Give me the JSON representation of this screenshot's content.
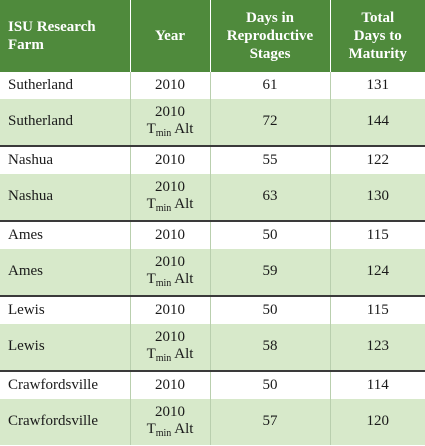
{
  "header": {
    "col1": [
      "ISU Research",
      "Farm"
    ],
    "col2": "Year",
    "col3": [
      "Days in",
      "Reproductive",
      "Stages"
    ],
    "col4": [
      "Total",
      "Days to",
      "Maturity"
    ]
  },
  "rows": [
    {
      "site": "Sutherland",
      "year": "2010",
      "alt": false,
      "repro": "61",
      "total": "131"
    },
    {
      "site": "Sutherland",
      "year": "2010",
      "alt": true,
      "alt_main": "T",
      "alt_sub": "min",
      "alt_tail": " Alt",
      "repro": "72",
      "total": "144"
    },
    {
      "site": "Nashua",
      "year": "2010",
      "alt": false,
      "repro": "55",
      "total": "122"
    },
    {
      "site": "Nashua",
      "year": "2010",
      "alt": true,
      "alt_main": "T",
      "alt_sub": "min",
      "alt_tail": " Alt",
      "repro": "63",
      "total": "130"
    },
    {
      "site": "Ames",
      "year": "2010",
      "alt": false,
      "repro": "50",
      "total": "115"
    },
    {
      "site": "Ames",
      "year": "2010",
      "alt": true,
      "alt_main": "T",
      "alt_sub": "min",
      "alt_tail": " Alt",
      "repro": "59",
      "total": "124"
    },
    {
      "site": "Lewis",
      "year": "2010",
      "alt": false,
      "repro": "50",
      "total": "115"
    },
    {
      "site": "Lewis",
      "year": "2010",
      "alt": true,
      "alt_main": "T",
      "alt_sub": "min",
      "alt_tail": " Alt",
      "repro": "58",
      "total": "123"
    },
    {
      "site": "Crawfordsville",
      "year": "2010",
      "alt": false,
      "repro": "50",
      "total": "114"
    },
    {
      "site": "Crawfordsville",
      "year": "2010",
      "alt": true,
      "alt_main": "T",
      "alt_sub": "min",
      "alt_tail": " Alt",
      "repro": "57",
      "total": "120"
    }
  ],
  "colors": {
    "header_bg": "#4f8a3c",
    "alt_row_bg": "#d7e9ca",
    "base_row_bg": "#ffffff"
  }
}
